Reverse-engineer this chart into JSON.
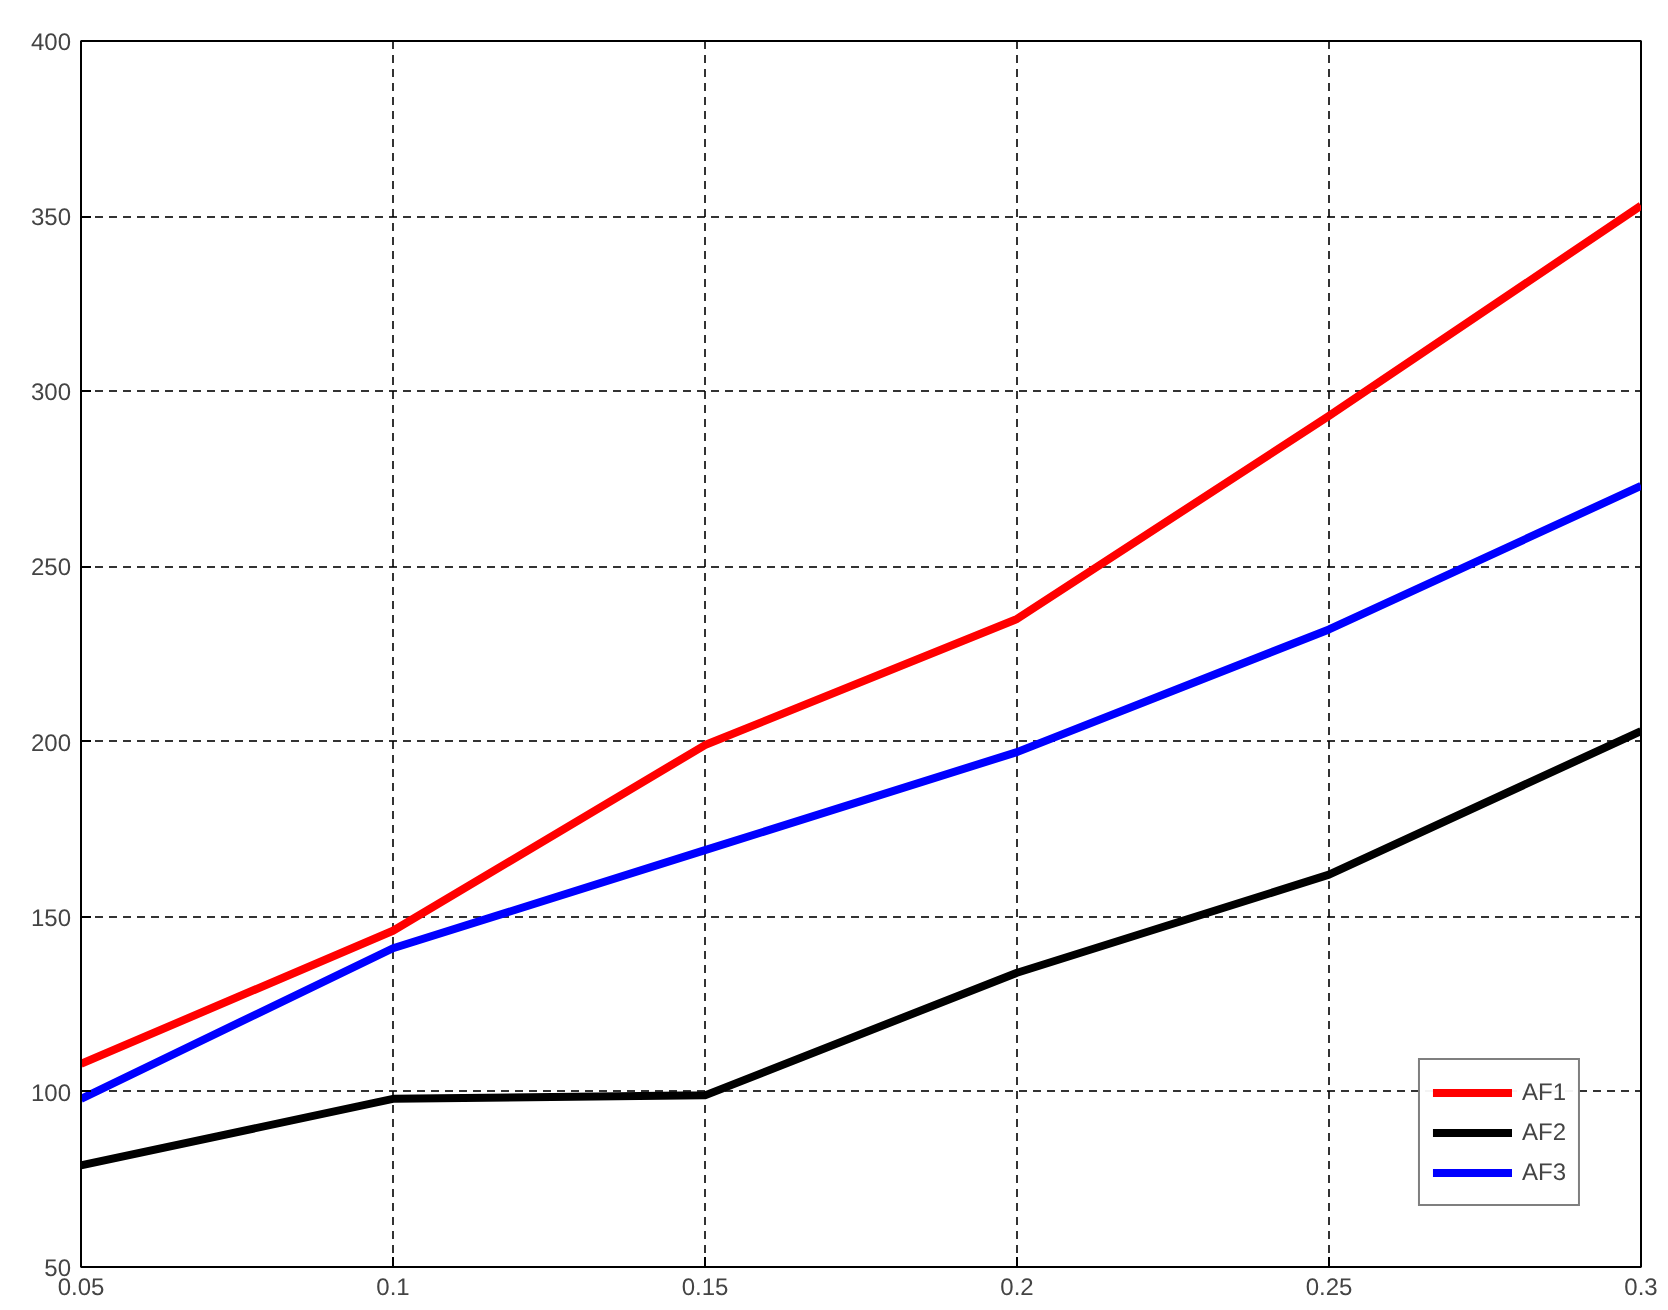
{
  "chart_data": {
    "type": "line",
    "x": [
      0.05,
      0.1,
      0.15,
      0.2,
      0.25,
      0.3
    ],
    "series": [
      {
        "name": "AF1",
        "color": "#ff0000",
        "values": [
          108,
          146,
          199,
          235,
          293,
          353
        ]
      },
      {
        "name": "AF2",
        "color": "#000000",
        "values": [
          79,
          98,
          99,
          134,
          162,
          203
        ]
      },
      {
        "name": "AF3",
        "color": "#0000ff",
        "values": [
          98,
          141,
          169,
          197,
          232,
          273
        ]
      }
    ],
    "xlim": [
      0.05,
      0.3
    ],
    "xticks": [
      0.05,
      0.1,
      0.15,
      0.2,
      0.25,
      0.3
    ],
    "ylim": [
      50,
      400
    ],
    "yticks": [
      50,
      100,
      150,
      200,
      250,
      300,
      350,
      400
    ],
    "grid": true,
    "legend": "bottom right",
    "line_style": "solid",
    "marker": "none"
  }
}
